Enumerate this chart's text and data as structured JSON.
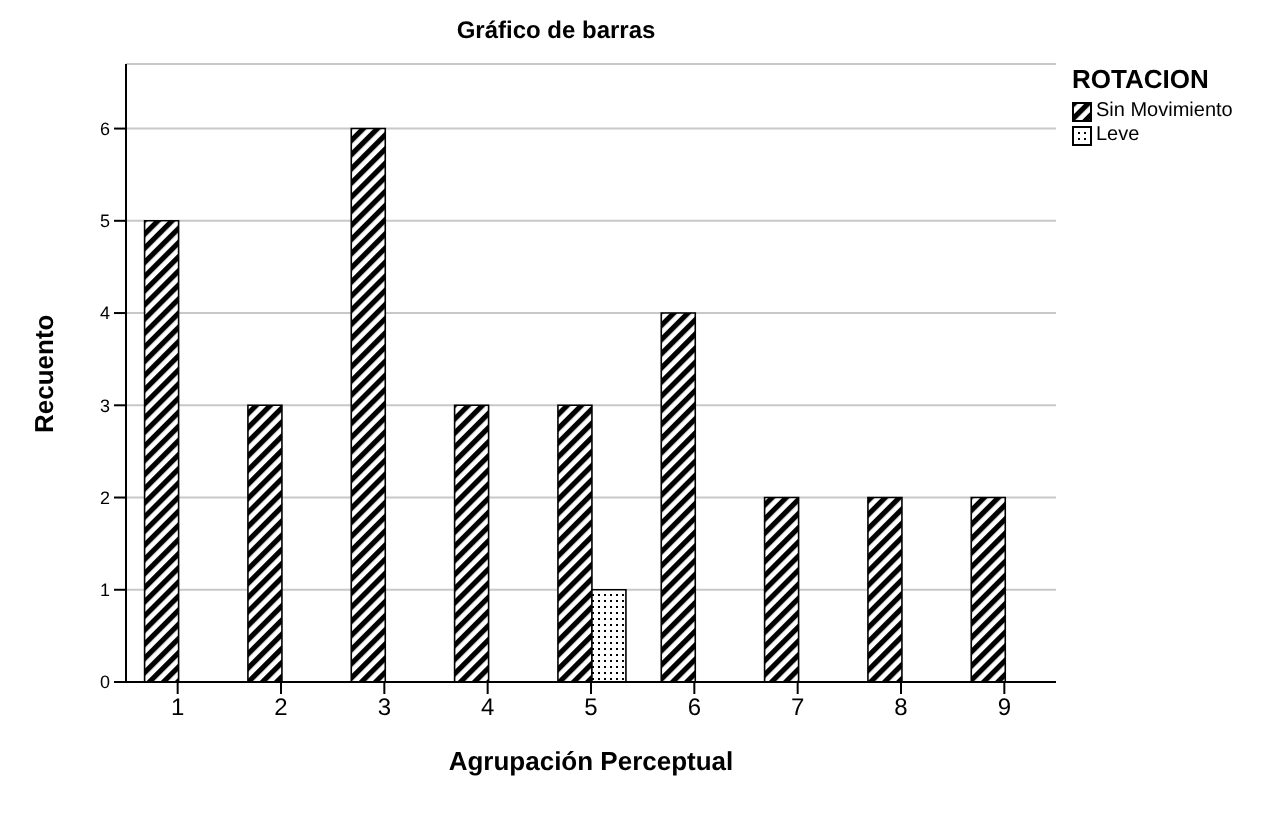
{
  "chart_data": {
    "type": "bar",
    "title": "Gráfico de barras",
    "xlabel": "Agrupación Perceptual",
    "ylabel": "Recuento",
    "legend_title": "ROTACION",
    "categories": [
      "1",
      "2",
      "3",
      "4",
      "5",
      "6",
      "7",
      "8",
      "9"
    ],
    "series": [
      {
        "name": "Sin Movimiento",
        "color": "#000000",
        "values": [
          5,
          3,
          6,
          3,
          3,
          4,
          2,
          2,
          2
        ]
      },
      {
        "name": "Leve",
        "color": "#000000",
        "values": [
          null,
          null,
          null,
          null,
          1,
          null,
          null,
          null,
          null
        ]
      }
    ],
    "ylim": [
      0,
      6.7
    ],
    "yticks": [
      0,
      1,
      2,
      3,
      4,
      5,
      6
    ],
    "grid": "y",
    "legend": "top right"
  }
}
